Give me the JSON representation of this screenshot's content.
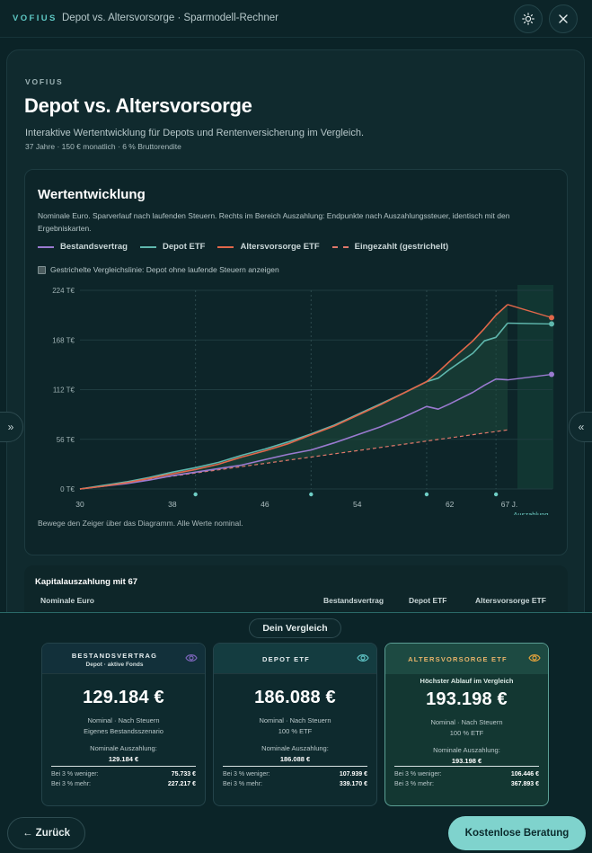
{
  "topbar": {
    "brand": "VOFIUS",
    "title": "Depot vs. Altersvorsorge · Sparmodell-Rechner"
  },
  "header": {
    "kicker": "VOFIUS",
    "title": "Depot vs. Altersvorsorge",
    "lead": "Interaktive Wertentwicklung für Depots und Rentenversicherung im Vergleich.",
    "meta": "37 Jahre · 150 € monatlich · 6 % Bruttorendite"
  },
  "chart_card": {
    "title": "Wertentwicklung",
    "description": "Nominale Euro. Sparverlauf nach laufenden Steuern. Rechts im Bereich Auszahlung: Endpunkte nach Auszahlungssteuer, identisch mit den Ergebniskarten.",
    "checkbox_label": "Gestrichelte Vergleichslinie: Depot ohne laufende Steuern anzeigen",
    "hint": "Bewege den Zeiger über das Diagramm. Alle Werte nominal.",
    "payout_label": "Auszahlung"
  },
  "chart_data": {
    "type": "line",
    "xlim": [
      30,
      67
    ],
    "ylim": [
      0,
      224
    ],
    "x_ticks": [
      "30",
      "38",
      "46",
      "54",
      "62",
      "67 J."
    ],
    "y_ticks": [
      "0 T€",
      "56 T€",
      "112 T€",
      "168 T€",
      "224 T€"
    ],
    "x": [
      30,
      32,
      34,
      36,
      38,
      40,
      42,
      44,
      46,
      48,
      50,
      52,
      54,
      56,
      58,
      60,
      61,
      62,
      64,
      65,
      66,
      67
    ],
    "series": [
      {
        "name": "Bestandsvertrag",
        "color": "#9a7ad0",
        "values": [
          0,
          3,
          6,
          10,
          15,
          19,
          23,
          27,
          33,
          39,
          44,
          52,
          61,
          70,
          81,
          93,
          90,
          96,
          109,
          117,
          124,
          123
        ],
        "payout_value": 129.184
      },
      {
        "name": "Depot ETF",
        "color": "#5fb7ad",
        "values": [
          0,
          4,
          8,
          13,
          19,
          24,
          30,
          38,
          45,
          53,
          62,
          72,
          84,
          96,
          108,
          121,
          125,
          135,
          153,
          167,
          171,
          187
        ],
        "payout_value": 186.088
      },
      {
        "name": "Altersvorsorge ETF",
        "color": "#e1674a",
        "values": [
          0,
          3,
          7,
          12,
          17,
          22,
          28,
          36,
          43,
          51,
          61,
          71,
          83,
          95,
          108,
          121,
          132,
          144,
          167,
          181,
          196,
          208
        ],
        "payout_value": 193.198
      },
      {
        "name": "Eingezahlt (gestrichelt)",
        "color": "#e0786a",
        "dashed": true,
        "values": [
          0,
          3.6,
          7.2,
          10.8,
          14.4,
          18,
          21.6,
          25.2,
          28.8,
          32.4,
          36,
          39.6,
          43.2,
          46.8,
          50.4,
          54,
          55.8,
          57.6,
          61.2,
          63,
          64.8,
          66.6
        ]
      }
    ],
    "marker_x": [
      40,
      50,
      60,
      66
    ]
  },
  "payout_table": {
    "title": "Kapitalauszahlung mit 67",
    "col0": "Nominale Euro",
    "col1": "Bestandsvertrag",
    "col2": "Depot ETF",
    "col3": "Altersvorsorge ETF"
  },
  "compare": {
    "pill": "Dein Vergleich",
    "cards": [
      {
        "name": "BESTANDSVERTRAG",
        "sub": "Depot · aktive Fonds",
        "amount": "129.184 €",
        "line1": "Nominal · Nach Steuern",
        "line2": "Eigenes Bestandsszenario",
        "payout_label": "Nominale Auszahlung:",
        "payout": "129.184 €",
        "less_label": "Bei 3 % weniger:",
        "less": "75.733 €",
        "more_label": "Bei 3 % mehr:",
        "more": "227.217 €",
        "eye_color": "#7a64b8"
      },
      {
        "name": "DEPOT ETF",
        "amount": "186.088 €",
        "line1": "Nominal · Nach Steuern",
        "line2": "100 % ETF",
        "payout_label": "Nominale Auszahlung:",
        "payout": "186.088 €",
        "less_label": "Bei 3 % weniger:",
        "less": "107.939 €",
        "more_label": "Bei 3 % mehr:",
        "more": "339.170 €",
        "eye_color": "#5ec2c4"
      },
      {
        "name": "ALTERSVORSORGE ETF",
        "best": "Höchster Ablauf im Vergleich",
        "amount": "193.198 €",
        "line1": "Nominal · Nach Steuern",
        "line2": "100 % ETF",
        "payout_label": "Nominale Auszahlung:",
        "payout": "193.198 €",
        "less_label": "Bei 3 % weniger:",
        "less": "106.446 €",
        "more_label": "Bei 3 % mehr:",
        "more": "367.893 €",
        "eye_color": "#e0a13c"
      }
    ]
  },
  "footer": {
    "back": "← Zurück",
    "cta": "Kostenlose Beratung"
  }
}
